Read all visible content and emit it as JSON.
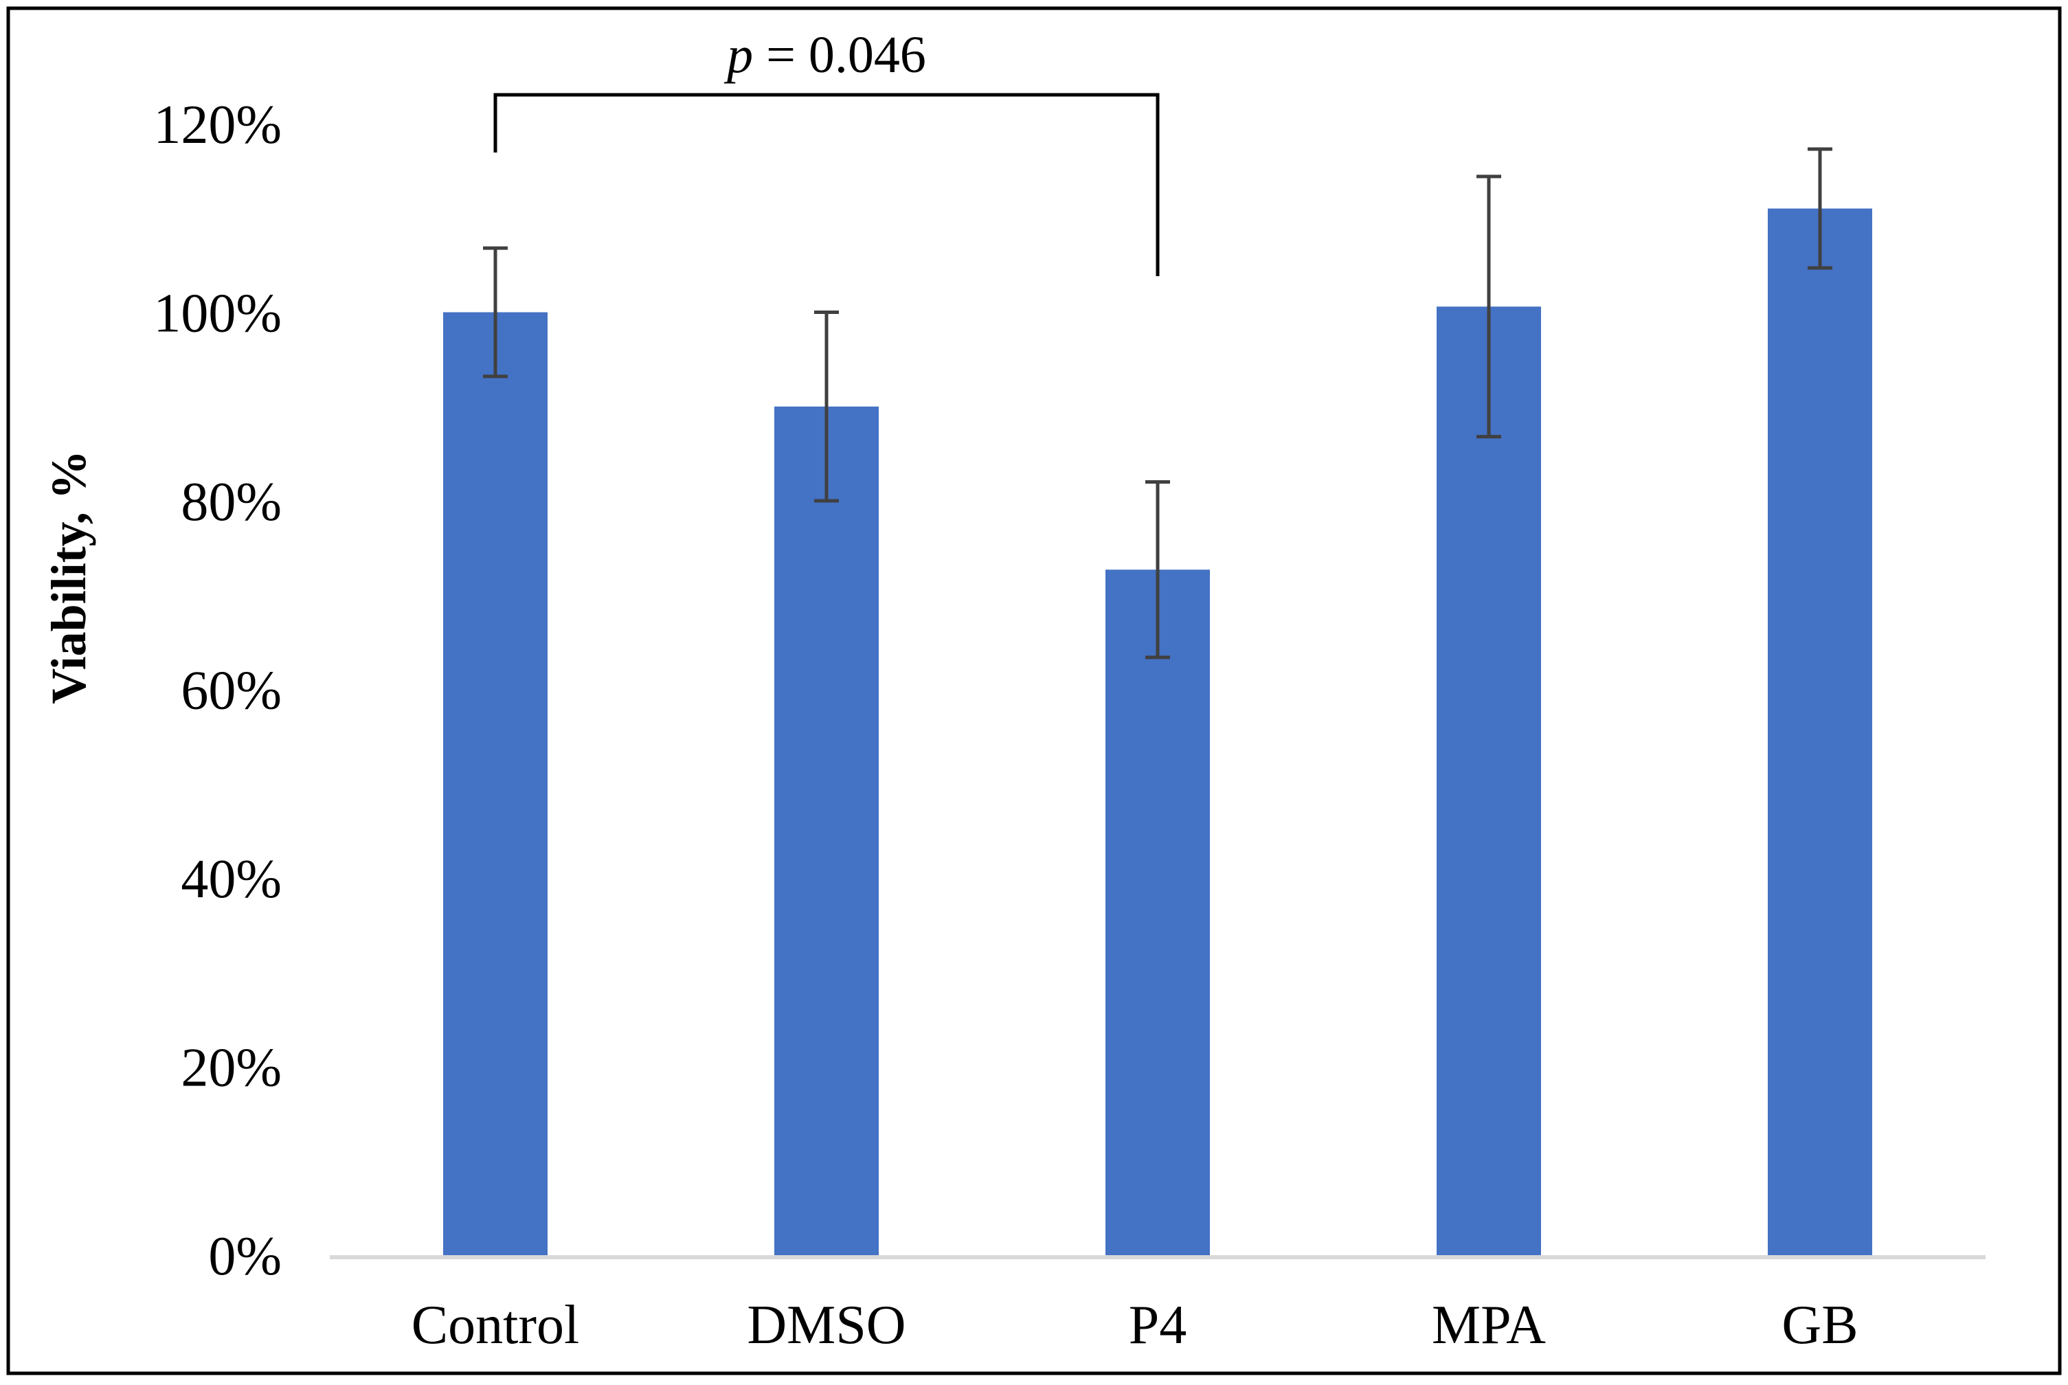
{
  "chart_data": {
    "type": "bar",
    "title": "",
    "xlabel": "",
    "ylabel": "Viability, %",
    "ylim": [
      0,
      120
    ],
    "yticks": [
      0,
      20,
      40,
      60,
      80,
      100,
      120
    ],
    "ytick_labels": [
      "0%",
      "20%",
      "40%",
      "60%",
      "80%",
      "100%",
      "120%"
    ],
    "grid": false,
    "categories": [
      "Control",
      "DMSO",
      "P4",
      "MPA",
      "GB"
    ],
    "values": [
      100,
      90,
      72.7,
      100.6,
      111
    ],
    "error": [
      6.8,
      10,
      9.3,
      13.8,
      6.3
    ],
    "bar_color": "#4472C4",
    "error_color": "#404040",
    "annotation": {
      "p_symbol": "p",
      "p_value_text": " = 0.046",
      "from_category": "Control",
      "to_category": "P4"
    }
  }
}
